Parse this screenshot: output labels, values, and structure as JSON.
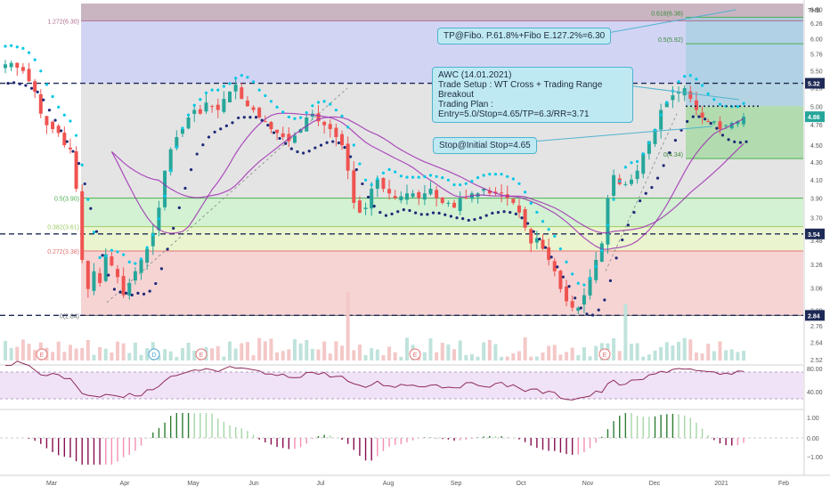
{
  "chart_data": {
    "type": "candlestick",
    "symbol_currency": "THB",
    "price_axis": {
      "scale": "log",
      "ticks": [
        2.52,
        2.64,
        2.76,
        2.88,
        3.06,
        3.26,
        3.48,
        3.7,
        3.9,
        4.1,
        4.3,
        4.5,
        4.76,
        5.0,
        5.26,
        5.5,
        5.76,
        6.0,
        6.26,
        6.5
      ],
      "labels": [
        "2.52",
        "2.64",
        "2.76",
        "2.88",
        "3.06",
        "3.26",
        "3.48",
        "3.70",
        "3.90",
        "4.10",
        "4.30",
        "4.50",
        "4.76",
        "5.00",
        "5.26",
        "5.50",
        "5.76",
        "6.00",
        "6.26",
        "6.50"
      ],
      "range": [
        2.52,
        6.6
      ],
      "badges": [
        {
          "label": "5.32",
          "value": 5.32,
          "color": "#1e2a55"
        },
        {
          "label": "4.86",
          "value": 4.86,
          "color": "#26a69a"
        },
        {
          "label": "3.54",
          "value": 3.54,
          "color": "#1e2a55"
        },
        {
          "label": "2.84",
          "value": 2.84,
          "color": "#1e2a55"
        }
      ]
    },
    "time_axis": {
      "labels": [
        "Mar",
        "Apr",
        "May",
        "Jun",
        "Jul",
        "Aug",
        "Sep",
        "Oct",
        "Nov",
        "Dec",
        "2021",
        "Feb"
      ]
    },
    "fibonacci_retracement": [
      {
        "label": "1.272(6.30)",
        "value": 6.3
      },
      {
        "label": "0.5(3.90)",
        "value": 3.9
      },
      {
        "label": "0.382(3.61)",
        "value": 3.61
      },
      {
        "label": "0.272(3.38)",
        "value": 3.38
      },
      {
        "label": "0(2.84)",
        "value": 2.84
      }
    ],
    "fibonacci_extension": [
      {
        "label": "0.618(6.36)",
        "value": 6.36
      },
      {
        "label": "0.5(5.92)",
        "value": 5.92
      },
      {
        "label": "0(4.34)",
        "value": 4.34
      }
    ],
    "horizontal_lines": [
      5.32,
      3.54,
      2.84
    ],
    "annotations": [
      {
        "text": "TP@Fibo. P.61.8%+Fibo E.127.2%=6.30"
      },
      {
        "lines": [
          "AWC (14.01.2021)",
          "Trade Setup : WT Cross + Trading Range Breakout",
          "Trading Plan : Entry=5.0/Stop=4.65/TP=6.3/RR=3.71"
        ]
      },
      {
        "text": "Stop@Initial Stop=4.65"
      }
    ],
    "trade_plan": {
      "entry": 5.0,
      "stop": 4.65,
      "target": 6.3,
      "rr": 3.71
    },
    "events": [
      "E",
      "D",
      "E",
      "E",
      "E"
    ],
    "closes": [
      5.6,
      5.62,
      5.55,
      5.5,
      5.35,
      5.2,
      4.9,
      4.75,
      4.7,
      4.65,
      4.5,
      4.45,
      4.0,
      3.3,
      3.05,
      3.2,
      3.1,
      3.35,
      3.25,
      3.15,
      3.0,
      3.1,
      3.2,
      3.3,
      3.4,
      3.55,
      3.8,
      4.2,
      4.45,
      4.6,
      4.7,
      4.85,
      4.95,
      4.9,
      5.05,
      5.0,
      4.95,
      5.1,
      5.2,
      5.3,
      5.1,
      5.0,
      4.95,
      4.85,
      4.8,
      4.7,
      4.65,
      4.6,
      4.55,
      4.62,
      4.7,
      4.85,
      4.9,
      4.8,
      4.75,
      4.7,
      4.6,
      4.5,
      4.2,
      3.85,
      3.75,
      3.8,
      4.0,
      4.1,
      4.0,
      3.95,
      3.9,
      3.92,
      3.95,
      3.95,
      3.9,
      3.95,
      4.0,
      3.9,
      3.85,
      3.85,
      3.8,
      3.9,
      3.9,
      3.95,
      3.95,
      4.0,
      3.95,
      3.95,
      3.95,
      3.9,
      3.85,
      3.75,
      3.6,
      3.45,
      3.5,
      3.4,
      3.3,
      3.2,
      3.05,
      2.95,
      2.9,
      2.9,
      3.0,
      3.15,
      3.3,
      3.45,
      3.9,
      4.15,
      4.05,
      4.05,
      4.1,
      4.2,
      4.4,
      4.55,
      4.7,
      4.95,
      5.05,
      5.15,
      5.2,
      5.25,
      5.1,
      4.95,
      4.85,
      4.8,
      4.8,
      4.7,
      4.75,
      4.78,
      4.8,
      4.86
    ],
    "indicator_panes": [
      {
        "type": "line",
        "ticks": [
          80.0,
          40.0
        ],
        "labels": [
          "80.00",
          "40.00"
        ]
      },
      {
        "type": "histogram",
        "ticks": [
          1.0,
          0.0,
          -1.0
        ],
        "labels": [
          "1.00",
          "0.00",
          "−1.00"
        ]
      }
    ],
    "colors": {
      "up": "#26a69a",
      "down": "#ef5350",
      "ma": "#9c27b0",
      "wt_fast": "#00c8e6",
      "wt_slow": "#1e2a78",
      "badge_dark": "#1e2a55"
    }
  }
}
